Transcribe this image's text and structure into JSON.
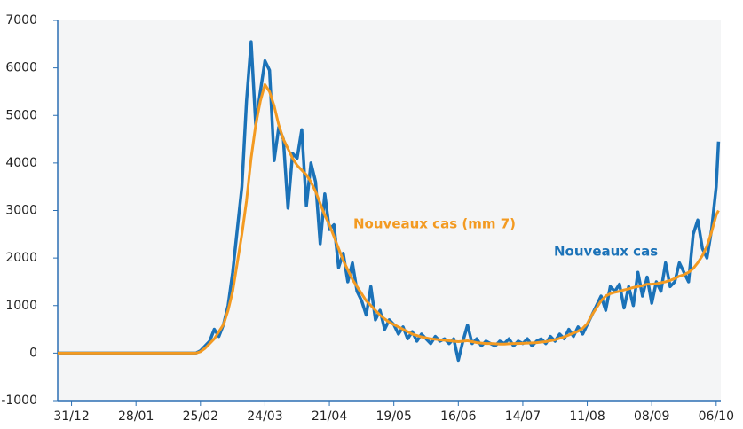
{
  "chart_data": {
    "type": "line",
    "xlim": [
      -6,
      282
    ],
    "ylim": [
      -1000,
      7000
    ],
    "yticks": [
      -1000,
      0,
      1000,
      2000,
      3000,
      4000,
      5000,
      6000,
      7000
    ],
    "xticks": [
      {
        "value": 0,
        "label": "31/12"
      },
      {
        "value": 28,
        "label": "28/01"
      },
      {
        "value": 56,
        "label": "25/02"
      },
      {
        "value": 84,
        "label": "24/03"
      },
      {
        "value": 112,
        "label": "21/04"
      },
      {
        "value": 140,
        "label": "19/05"
      },
      {
        "value": 168,
        "label": "16/06"
      },
      {
        "value": 196,
        "label": "14/07"
      },
      {
        "value": 224,
        "label": "11/08"
      },
      {
        "value": 252,
        "label": "08/09"
      },
      {
        "value": 280,
        "label": "06/10"
      }
    ],
    "x": [
      -6,
      -4,
      -2,
      0,
      2,
      4,
      6,
      8,
      10,
      12,
      14,
      16,
      18,
      20,
      22,
      24,
      26,
      28,
      30,
      32,
      34,
      36,
      38,
      40,
      42,
      44,
      46,
      48,
      50,
      52,
      54,
      56,
      58,
      60,
      62,
      64,
      66,
      68,
      70,
      72,
      74,
      76,
      78,
      80,
      82,
      84,
      86,
      88,
      90,
      92,
      94,
      96,
      98,
      100,
      102,
      104,
      106,
      108,
      110,
      112,
      114,
      116,
      118,
      120,
      122,
      124,
      126,
      128,
      130,
      132,
      134,
      136,
      138,
      140,
      142,
      144,
      146,
      148,
      150,
      152,
      154,
      156,
      158,
      160,
      162,
      164,
      166,
      168,
      170,
      172,
      174,
      176,
      178,
      180,
      182,
      184,
      186,
      188,
      190,
      192,
      194,
      196,
      198,
      200,
      202,
      204,
      206,
      208,
      210,
      212,
      214,
      216,
      218,
      220,
      222,
      224,
      226,
      228,
      230,
      232,
      234,
      236,
      238,
      240,
      242,
      244,
      246,
      248,
      250,
      252,
      254,
      256,
      258,
      260,
      262,
      264,
      266,
      268,
      270,
      272,
      274,
      276,
      278,
      280,
      281
    ],
    "series": [
      {
        "name": "Nouveaux cas",
        "color": "#1b72b8",
        "values": [
          0,
          0,
          0,
          0,
          0,
          0,
          0,
          0,
          0,
          0,
          0,
          0,
          0,
          0,
          0,
          0,
          0,
          0,
          0,
          0,
          0,
          0,
          0,
          0,
          0,
          0,
          0,
          0,
          0,
          0,
          0,
          50,
          150,
          250,
          500,
          350,
          600,
          1000,
          1700,
          2600,
          3500,
          5300,
          6550,
          4800,
          5500,
          6150,
          5950,
          4050,
          4750,
          4500,
          3050,
          4200,
          4100,
          4700,
          3100,
          4000,
          3600,
          2300,
          3350,
          2600,
          2700,
          1800,
          2100,
          1500,
          1900,
          1300,
          1100,
          800,
          1400,
          700,
          900,
          500,
          700,
          600,
          400,
          550,
          300,
          450,
          250,
          400,
          300,
          200,
          350,
          250,
          300,
          200,
          300,
          -150,
          250,
          590,
          200,
          300,
          150,
          250,
          200,
          150,
          250,
          200,
          300,
          150,
          250,
          200,
          300,
          150,
          250,
          300,
          200,
          350,
          250,
          400,
          300,
          500,
          350,
          550,
          400,
          600,
          800,
          1000,
          1200,
          900,
          1400,
          1300,
          1450,
          950,
          1400,
          1000,
          1700,
          1200,
          1600,
          1050,
          1500,
          1300,
          1900,
          1400,
          1500,
          1900,
          1700,
          1500,
          2500,
          2800,
          2200,
          2000,
          2600,
          3500,
          4450
        ]
      },
      {
        "name": "Nouveaux cas (mm 7)",
        "color": "#f39a21",
        "values": [
          0,
          0,
          0,
          0,
          0,
          0,
          0,
          0,
          0,
          0,
          0,
          0,
          0,
          0,
          0,
          0,
          0,
          0,
          0,
          0,
          0,
          0,
          0,
          0,
          0,
          0,
          0,
          0,
          0,
          0,
          0,
          30,
          100,
          200,
          300,
          450,
          600,
          900,
          1300,
          1900,
          2500,
          3200,
          4100,
          4800,
          5300,
          5650,
          5500,
          5200,
          4800,
          4500,
          4300,
          4100,
          3950,
          3850,
          3750,
          3600,
          3400,
          3150,
          2900,
          2700,
          2450,
          2200,
          1950,
          1750,
          1550,
          1400,
          1250,
          1100,
          1000,
          900,
          800,
          720,
          650,
          600,
          550,
          500,
          450,
          400,
          370,
          340,
          320,
          300,
          290,
          280,
          270,
          260,
          250,
          240,
          250,
          260,
          240,
          220,
          210,
          200,
          200,
          195,
          190,
          190,
          195,
          200,
          200,
          205,
          210,
          215,
          220,
          230,
          240,
          260,
          280,
          310,
          340,
          380,
          420,
          460,
          520,
          620,
          800,
          950,
          1100,
          1200,
          1250,
          1280,
          1300,
          1330,
          1350,
          1380,
          1400,
          1420,
          1450,
          1450,
          1460,
          1480,
          1500,
          1530,
          1570,
          1620,
          1650,
          1700,
          1780,
          1900,
          2050,
          2250,
          2550,
          2900,
          3000
        ]
      }
    ]
  }
}
